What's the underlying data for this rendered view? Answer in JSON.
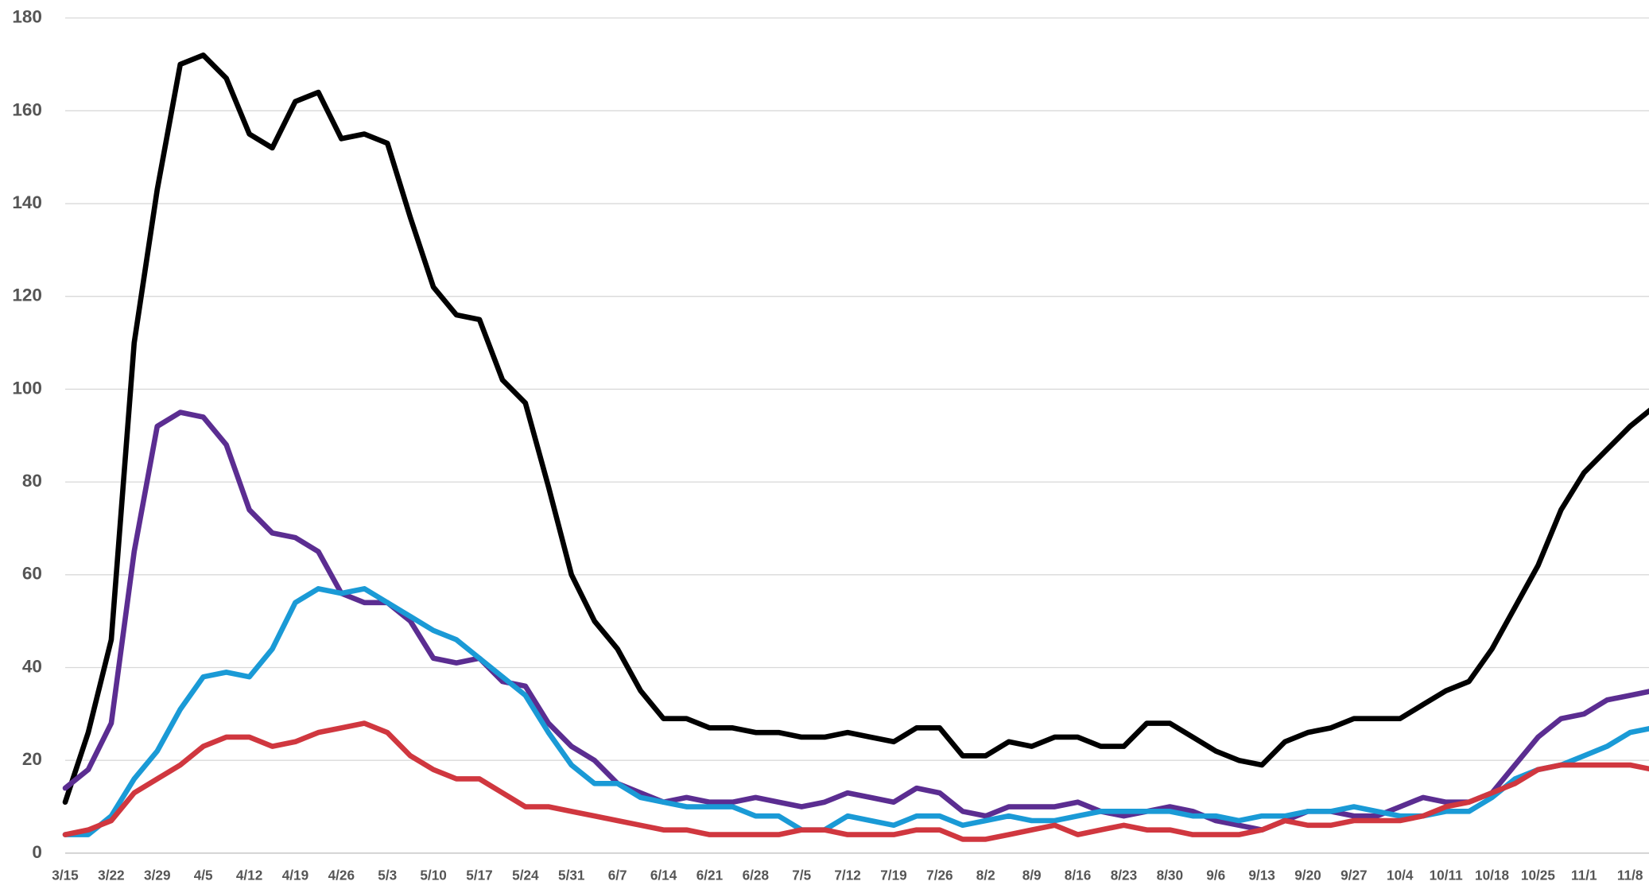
{
  "chart_data": {
    "type": "line",
    "categories": [
      "3/15",
      null,
      "3/22",
      null,
      "3/29",
      null,
      "4/5",
      null,
      "4/12",
      null,
      "4/19",
      null,
      "4/26",
      null,
      "5/3",
      null,
      "5/10",
      null,
      "5/17",
      null,
      "5/24",
      null,
      "5/31",
      null,
      "6/7",
      null,
      "6/14",
      null,
      "6/21",
      null,
      "6/28",
      null,
      "7/5",
      null,
      "7/12",
      null,
      "7/19",
      null,
      "7/26",
      null,
      "8/2",
      null,
      "8/9",
      null,
      "8/16",
      null,
      "8/23",
      null,
      "8/30",
      null,
      "9/6",
      null,
      "9/13",
      null,
      "9/20",
      null,
      "9/27",
      null,
      "10/4",
      null,
      "10/11",
      null,
      "10/18",
      null,
      "10/25",
      null,
      "11/1",
      null,
      "11/8",
      null
    ],
    "series": [
      {
        "color": "#000000",
        "values": [
          11,
          26,
          46,
          110,
          143,
          170,
          172,
          167,
          155,
          152,
          162,
          164,
          154,
          155,
          153,
          137,
          122,
          116,
          115,
          102,
          97,
          79,
          60,
          50,
          44,
          35,
          29,
          29,
          27,
          27,
          26,
          26,
          25,
          25,
          26,
          25,
          24,
          27,
          27,
          21,
          21,
          24,
          23,
          25,
          25,
          23,
          23,
          28,
          28,
          25,
          22,
          20,
          19,
          24,
          26,
          27,
          29,
          29,
          29,
          32,
          35,
          37,
          44,
          53,
          62,
          74,
          82,
          87,
          92,
          96
        ]
      },
      {
        "color": "#5b2d91",
        "values": [
          14,
          18,
          28,
          65,
          92,
          95,
          94,
          88,
          74,
          69,
          68,
          65,
          56,
          54,
          54,
          50,
          42,
          41,
          42,
          37,
          36,
          28,
          23,
          20,
          15,
          13,
          11,
          12,
          11,
          11,
          12,
          11,
          10,
          11,
          13,
          12,
          11,
          14,
          13,
          9,
          8,
          10,
          10,
          10,
          11,
          9,
          8,
          9,
          10,
          9,
          7,
          6,
          5,
          7,
          9,
          9,
          8,
          8,
          10,
          12,
          11,
          11,
          13,
          19,
          25,
          29,
          30,
          33,
          34,
          35
        ]
      },
      {
        "color": "#1a9ad6",
        "values": [
          4,
          4,
          8,
          16,
          22,
          31,
          38,
          39,
          38,
          44,
          54,
          57,
          56,
          57,
          54,
          51,
          48,
          46,
          42,
          38,
          34,
          26,
          19,
          15,
          15,
          12,
          11,
          10,
          10,
          10,
          8,
          8,
          5,
          5,
          8,
          7,
          6,
          8,
          8,
          6,
          7,
          8,
          7,
          7,
          8,
          9,
          9,
          9,
          9,
          8,
          8,
          7,
          8,
          8,
          9,
          9,
          10,
          9,
          8,
          8,
          9,
          9,
          12,
          16,
          18,
          19,
          21,
          23,
          26,
          27
        ]
      },
      {
        "color": "#d0373f",
        "values": [
          4,
          5,
          7,
          13,
          16,
          19,
          23,
          25,
          25,
          23,
          24,
          26,
          27,
          28,
          26,
          21,
          18,
          16,
          16,
          13,
          10,
          10,
          9,
          8,
          7,
          6,
          5,
          5,
          4,
          4,
          4,
          4,
          5,
          5,
          4,
          4,
          4,
          5,
          5,
          3,
          3,
          4,
          5,
          6,
          4,
          5,
          6,
          5,
          5,
          4,
          4,
          4,
          5,
          7,
          6,
          6,
          7,
          7,
          7,
          8,
          10,
          11,
          13,
          15,
          18,
          19,
          19,
          19,
          19,
          18
        ]
      }
    ],
    "ylim": [
      0,
      180
    ],
    "yticks": [
      0,
      20,
      40,
      60,
      80,
      100,
      120,
      140,
      160,
      180
    ],
    "grid": true
  }
}
